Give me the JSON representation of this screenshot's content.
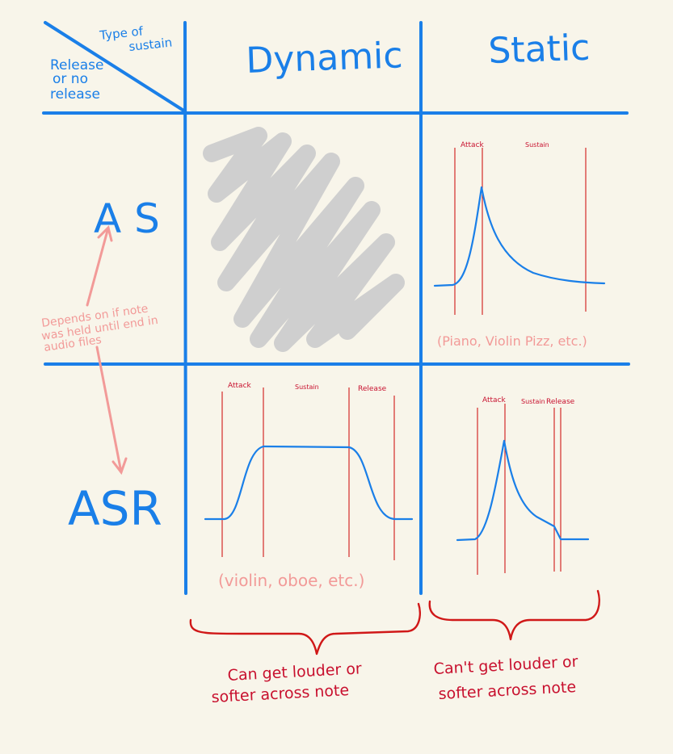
{
  "header": {
    "corner_top": "Type of",
    "corner_top2": "sustain",
    "corner_left1": "Release",
    "corner_left2": "or no",
    "corner_left3": "release",
    "col_dynamic": "Dynamic",
    "col_static": "Static"
  },
  "rows": {
    "as": "A S",
    "asr": "ASR"
  },
  "note": {
    "line1": "Depends on if note",
    "line2": "was held until end in",
    "line3": "audio files"
  },
  "graphs": {
    "static_as": {
      "attack": "Attack",
      "sustain": "Sustain",
      "caption": "(Piano, Violin Pizz, etc.)"
    },
    "dynamic_asr": {
      "attack": "Attack",
      "sustain": "Sustain",
      "release": "Release",
      "caption": "(violin, oboe, etc.)"
    },
    "static_asr": {
      "attack": "Attack",
      "sustain": "Sustain",
      "release": "Release"
    }
  },
  "bottom": {
    "dynamic_line1": "Can get louder or",
    "dynamic_line2": "softer across note",
    "static_line1": "Can't get louder or",
    "static_line2": "softer across note"
  },
  "colors": {
    "grid": "#1a7fe8",
    "marker": "#d01818",
    "note": "#f29a98",
    "hatch": "#cfcfcf",
    "background": "#f8f5ea"
  }
}
